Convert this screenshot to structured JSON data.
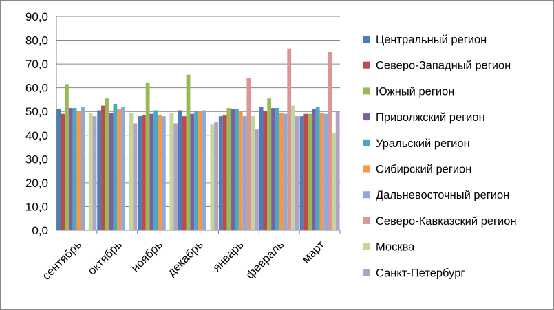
{
  "chart_data": {
    "type": "bar",
    "title": "",
    "xlabel": "",
    "ylabel": "",
    "ylim": [
      0,
      90
    ],
    "yticks": [
      "0,0",
      "10,0",
      "20,0",
      "30,0",
      "40,0",
      "50,0",
      "60,0",
      "70,0",
      "80,0",
      "90,0"
    ],
    "grid": true,
    "legend_position": "right",
    "categories": [
      "сентябрь",
      "октябрь",
      "ноябрь",
      "декабрь",
      "январь",
      "февраль",
      "март"
    ],
    "series": [
      {
        "name": "Центральный регион",
        "color": "#4a7ebb",
        "values": [
          51.0,
          50.5,
          48.0,
          50.5,
          48.0,
          52.0,
          48.0
        ]
      },
      {
        "name": "Северо-Западный регион",
        "color": "#be4b48",
        "values": [
          49.0,
          52.5,
          48.5,
          48.0,
          48.5,
          50.0,
          49.0
        ]
      },
      {
        "name": "Южный регион",
        "color": "#98b954",
        "values": [
          61.5,
          55.5,
          62.0,
          65.5,
          51.5,
          55.5,
          49.0
        ]
      },
      {
        "name": "Приволжский регион",
        "color": "#7d60a0",
        "values": [
          51.5,
          49.5,
          49.0,
          49.0,
          51.0,
          51.5,
          51.0
        ]
      },
      {
        "name": "Уральский регион",
        "color": "#46aac5",
        "values": [
          51.5,
          53.0,
          50.5,
          50.0,
          51.0,
          51.5,
          52.0
        ]
      },
      {
        "name": "Сибирский регион",
        "color": "#f79646",
        "values": [
          50.0,
          51.0,
          48.5,
          50.0,
          50.0,
          49.5,
          49.5
        ]
      },
      {
        "name": "Дальневосточный регион",
        "color": "#8eaadb",
        "values": [
          52.0,
          52.0,
          48.0,
          50.5,
          48.0,
          49.0,
          49.0
        ]
      },
      {
        "name": "Северо-Кавказский регион",
        "color": "#d99694",
        "values": [
          0,
          0,
          0,
          0,
          64.0,
          76.5,
          75.0
        ]
      },
      {
        "name": "Москва",
        "color": "#c3d69b",
        "values": [
          49.5,
          49.5,
          49.5,
          44.5,
          48.0,
          52.5,
          41.0
        ]
      },
      {
        "name": "Санкт-Петербург",
        "color": "#b3a2c7",
        "values": [
          48.0,
          45.0,
          45.0,
          45.5,
          42.5,
          48.0,
          50.0
        ]
      }
    ]
  }
}
